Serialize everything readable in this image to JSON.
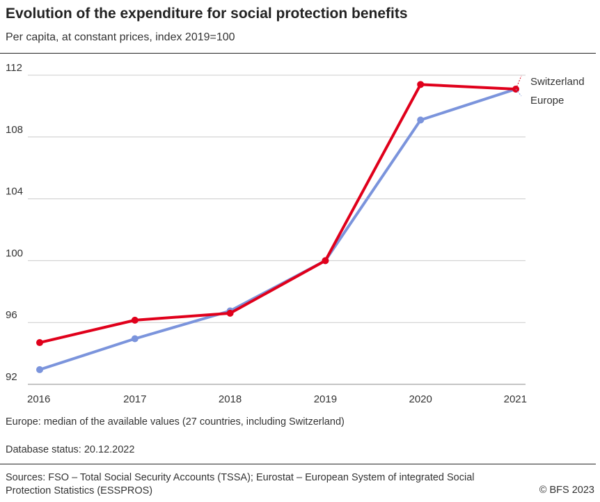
{
  "chart_data": {
    "type": "line",
    "title": "Evolution of the expenditure for social protection benefits",
    "subtitle": "Per capita, at constant prices, index 2019=100",
    "x": [
      "2016",
      "2017",
      "2018",
      "2019",
      "2020",
      "2021"
    ],
    "yticks": [
      92,
      96,
      100,
      104,
      108,
      112
    ],
    "ylim": [
      92,
      112
    ],
    "grid": true,
    "series": [
      {
        "name": "Switzerland",
        "color": "#e0001b",
        "values": [
          94.7,
          96.15,
          96.6,
          100,
          111.4,
          111.1
        ]
      },
      {
        "name": "Europe",
        "color": "#7b94dc",
        "values": [
          92.95,
          94.95,
          96.75,
          100,
          109.1,
          111.1
        ]
      }
    ],
    "legend": "end-of-line labels, right"
  },
  "notes": {
    "europe": "Europe: median of the available values (27 countries, including Switzerland)",
    "status": "Database status: 20.12.2022",
    "sources": "Sources: FSO – Total Social Security Accounts (TSSA); Eurostat – European System of integrated Social Protection Statistics (ESSPROS)",
    "copyright": "© BFS 2023"
  }
}
